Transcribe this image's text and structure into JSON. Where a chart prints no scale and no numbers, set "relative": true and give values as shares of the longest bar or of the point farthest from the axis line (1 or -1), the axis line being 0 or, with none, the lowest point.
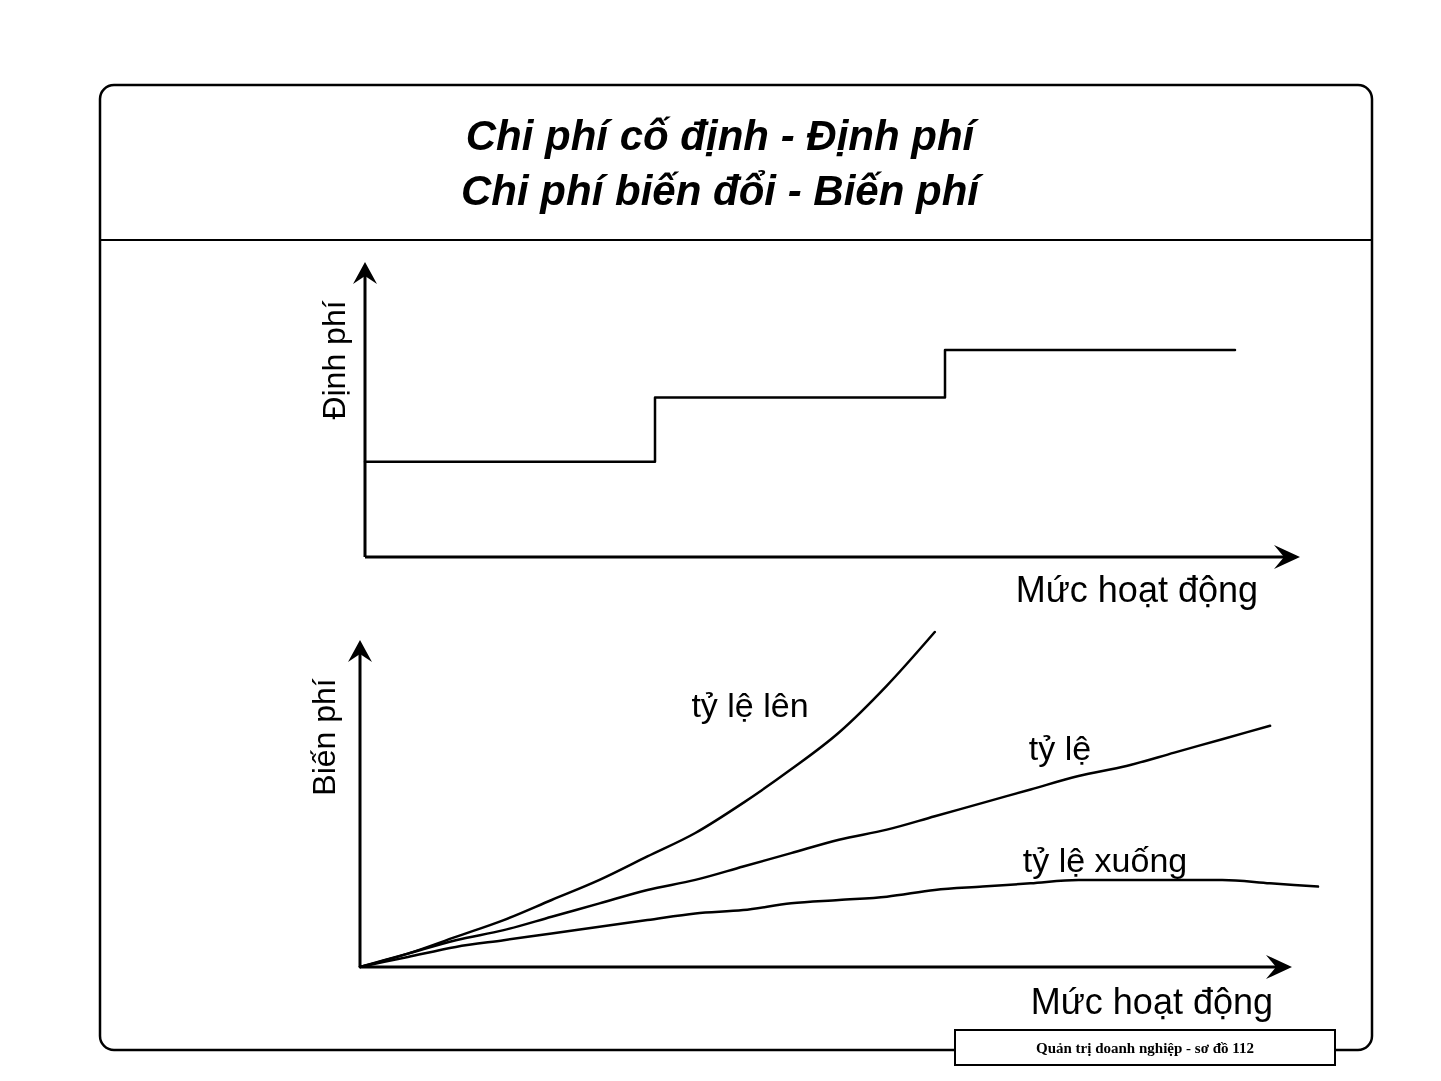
{
  "chart_data": [
    {
      "type": "step",
      "title": "Chi phí cố định - Định phí",
      "subtitle": "Chi phí biến đổi - Biến phí",
      "ylabel": "Định phí",
      "xlabel": "Mức hoạt động",
      "relative": true,
      "categories": [
        null,
        null,
        null,
        null
      ],
      "values": [
        0.46,
        0.77,
        1,
        1
      ],
      "color": "#000000"
    },
    {
      "type": "line",
      "ylabel": "Biến phí",
      "xlabel": "Mức hoạt động",
      "relative": true,
      "categories": [
        null,
        null,
        null,
        null,
        null,
        null,
        null,
        null,
        null,
        null,
        null,
        null,
        null,
        null,
        null,
        null,
        null,
        null,
        null,
        null,
        null
      ],
      "series": [
        {
          "name": "tỷ lệ lên",
          "color": "#000000",
          "values": [
            0,
            0.04,
            0.09,
            0.14,
            0.2,
            0.26,
            0.33,
            0.4,
            0.49,
            0.59,
            0.7,
            0.84,
            1,
            null,
            null,
            null,
            null,
            null,
            null,
            null,
            null
          ]
        },
        {
          "name": "tỷ lệ",
          "color": "#000000",
          "values": [
            0,
            0.04,
            0.08,
            0.11,
            0.15,
            0.19,
            0.23,
            0.26,
            0.3,
            0.34,
            0.38,
            0.41,
            0.45,
            0.49,
            0.53,
            0.57,
            0.6,
            0.64,
            0.68,
            0.72,
            null
          ]
        },
        {
          "name": "tỷ lệ xuống",
          "color": "#000000",
          "values": [
            0,
            0.03,
            0.06,
            0.08,
            0.1,
            0.12,
            0.14,
            0.16,
            0.17,
            0.19,
            0.2,
            0.21,
            0.23,
            0.24,
            0.25,
            0.26,
            0.26,
            0.26,
            0.26,
            0.25,
            0.24
          ]
        }
      ],
      "annotations": [
        "Quản trị doanh nghiệp - sơ đồ 112"
      ]
    }
  ]
}
